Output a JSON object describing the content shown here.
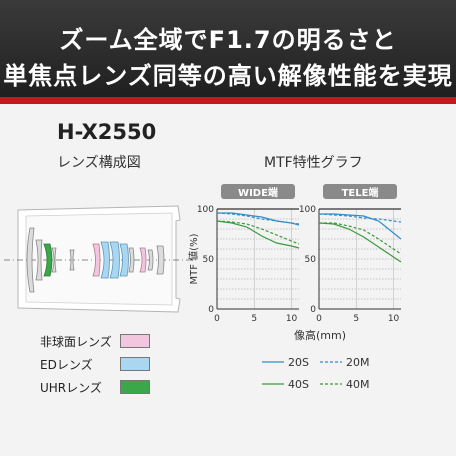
{
  "banner": {
    "line1": "ズーム全域でF1.7の明るさと",
    "line2": "単焦点レンズ同等の高い解像性能を実現"
  },
  "model": "H-X2550",
  "lens_section_title": "レンズ構成図",
  "mtf_section_title": "MTF特性グラフ",
  "lens_legend": [
    {
      "label": "非球面レンズ",
      "color": "#f2c6dd"
    },
    {
      "label": "EDレンズ",
      "color": "#a9d6f0"
    },
    {
      "label": "UHRレンズ",
      "color": "#3aa84a"
    }
  ],
  "colors": {
    "s20": "#2f8fc6",
    "s40": "#3a9a3c",
    "tab": "#8a8a8a",
    "red": "#c8161d"
  },
  "chart_data": [
    {
      "type": "line",
      "panel": "WIDE端",
      "ylabel": "MTF 値(%)",
      "xlabel": "像高(mm)",
      "xlim": [
        0,
        11
      ],
      "ylim": [
        0,
        100
      ],
      "xticks": [
        0,
        5,
        10
      ],
      "yticks": [
        0,
        50,
        100
      ],
      "series": [
        {
          "name": "20S",
          "style": "solid",
          "x": [
            0,
            2,
            4,
            6,
            8,
            10,
            11
          ],
          "y": [
            96,
            96,
            94,
            92,
            88,
            86,
            84
          ]
        },
        {
          "name": "20M",
          "style": "dashed",
          "x": [
            0,
            2,
            4,
            6,
            8,
            10,
            11
          ],
          "y": [
            96,
            95,
            93,
            90,
            88,
            86,
            85
          ]
        },
        {
          "name": "40S",
          "style": "solid",
          "x": [
            0,
            2,
            4,
            6,
            8,
            10,
            11
          ],
          "y": [
            88,
            86,
            82,
            73,
            66,
            63,
            61
          ]
        },
        {
          "name": "40M",
          "style": "dashed",
          "x": [
            0,
            2,
            4,
            6,
            8,
            10,
            11
          ],
          "y": [
            88,
            87,
            85,
            80,
            74,
            68,
            65
          ]
        }
      ]
    },
    {
      "type": "line",
      "panel": "TELE端",
      "ylabel": "",
      "xlabel": "像高(mm)",
      "xlim": [
        0,
        11
      ],
      "ylim": [
        0,
        100
      ],
      "xticks": [
        0,
        5,
        10
      ],
      "yticks": [
        0,
        50,
        100
      ],
      "series": [
        {
          "name": "20S",
          "style": "solid",
          "x": [
            0,
            2,
            4,
            6,
            8,
            10,
            11
          ],
          "y": [
            95,
            95,
            94,
            93,
            88,
            76,
            70
          ]
        },
        {
          "name": "20M",
          "style": "dashed",
          "x": [
            0,
            2,
            4,
            6,
            8,
            10,
            11
          ],
          "y": [
            95,
            94,
            93,
            91,
            90,
            88,
            87
          ]
        },
        {
          "name": "40S",
          "style": "solid",
          "x": [
            0,
            2,
            4,
            6,
            8,
            10,
            11
          ],
          "y": [
            86,
            85,
            80,
            72,
            62,
            52,
            47
          ]
        },
        {
          "name": "40M",
          "style": "dashed",
          "x": [
            0,
            2,
            4,
            6,
            8,
            10,
            11
          ],
          "y": [
            86,
            86,
            83,
            79,
            70,
            60,
            55
          ]
        }
      ]
    }
  ],
  "mtf_legend": [
    {
      "label": "20S",
      "series": "20S"
    },
    {
      "label": "20M",
      "series": "20M"
    },
    {
      "label": "40S",
      "series": "40S"
    },
    {
      "label": "40M",
      "series": "40M"
    }
  ]
}
